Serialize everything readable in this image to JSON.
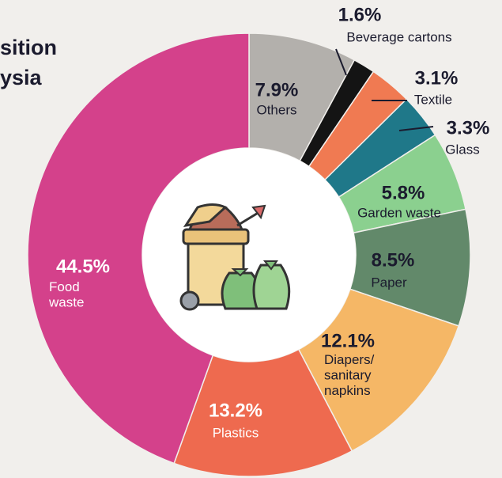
{
  "chart_data": {
    "type": "donut",
    "title": [
      "sition",
      "ysia"
    ],
    "categories": [
      "Others",
      "Beverage cartons",
      "Textile",
      "Glass",
      "Garden waste",
      "Paper",
      "Diapers/ sanitary napkins",
      "Plastics",
      "Food waste"
    ],
    "values": [
      7.9,
      1.6,
      3.1,
      3.3,
      5.8,
      8.5,
      12.1,
      13.2,
      44.5
    ],
    "value_labels": [
      "7.9%",
      "1.6%",
      "3.1%",
      "3.3%",
      "5.8%",
      "8.5%",
      "12.1%",
      "13.2%",
      "44.5%"
    ],
    "colors": [
      "#b3b0ac",
      "#141414",
      "#f07a52",
      "#1f7889",
      "#8bd08f",
      "#62896a",
      "#f5b766",
      "#ee6a4f",
      "#d4418b"
    ]
  }
}
